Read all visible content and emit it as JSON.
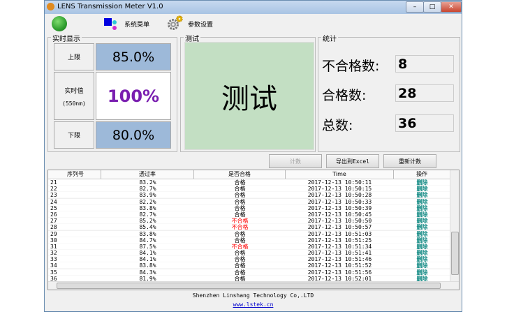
{
  "window": {
    "title": "LENS Transmission Meter V1.0"
  },
  "toolbar": {
    "system_menu": "系统菜单",
    "settings": "参数设置",
    "status_color": "#2e9e2e"
  },
  "realtime": {
    "group_label": "实时显示",
    "upper_label": "上限",
    "upper_value": "85.0%",
    "current_label": "实时值",
    "current_sub": "(550nm)",
    "current_value": "100%",
    "lower_label": "下限",
    "lower_value": "80.0%"
  },
  "test": {
    "group_label": "测试",
    "text": "测试",
    "color": "#c3dfc3"
  },
  "stats": {
    "group_label": "统计",
    "fail_label": "不合格数:",
    "fail_value": "8",
    "pass_label": "合格数:",
    "pass_value": "28",
    "total_label": "总数:",
    "total_value": "36"
  },
  "buttons": {
    "count": "计数",
    "export": "导出到Excel",
    "reset": "重新计数"
  },
  "table": {
    "headers": [
      "序列号",
      "透过率",
      "是否合格",
      "Time",
      "操作"
    ],
    "rows": [
      [
        "21",
        "83.2%",
        "合格",
        "2017-12-13 10:50:11",
        "删除"
      ],
      [
        "22",
        "82.7%",
        "合格",
        "2017-12-13 10:50:15",
        "删除"
      ],
      [
        "23",
        "83.9%",
        "合格",
        "2017-12-13 10:50:28",
        "删除"
      ],
      [
        "24",
        "82.2%",
        "合格",
        "2017-12-13 10:50:33",
        "删除"
      ],
      [
        "25",
        "83.8%",
        "合格",
        "2017-12-13 10:50:39",
        "删除"
      ],
      [
        "26",
        "82.7%",
        "合格",
        "2017-12-13 10:50:45",
        "删除"
      ],
      [
        "27",
        "85.2%",
        "不合格",
        "2017-12-13 10:50:50",
        "删除"
      ],
      [
        "28",
        "85.4%",
        "不合格",
        "2017-12-13 10:50:57",
        "删除"
      ],
      [
        "29",
        "83.8%",
        "合格",
        "2017-12-13 10:51:03",
        "删除"
      ],
      [
        "30",
        "84.7%",
        "合格",
        "2017-12-13 10:51:25",
        "删除"
      ],
      [
        "31",
        "87.5%",
        "不合格",
        "2017-12-13 10:51:34",
        "删除"
      ],
      [
        "32",
        "84.1%",
        "合格",
        "2017-12-13 10:51:41",
        "删除"
      ],
      [
        "33",
        "84.1%",
        "合格",
        "2017-12-13 10:51:46",
        "删除"
      ],
      [
        "34",
        "83.8%",
        "合格",
        "2017-12-13 10:51:52",
        "删除"
      ],
      [
        "35",
        "84.3%",
        "合格",
        "2017-12-13 10:51:56",
        "删除"
      ],
      [
        "36",
        "81.9%",
        "合格",
        "2017-12-13 10:52:01",
        "删除"
      ]
    ]
  },
  "footer": {
    "company": "Shenzhen Linshang Technology Co,.LTD",
    "link": "www.lstek.cn"
  }
}
